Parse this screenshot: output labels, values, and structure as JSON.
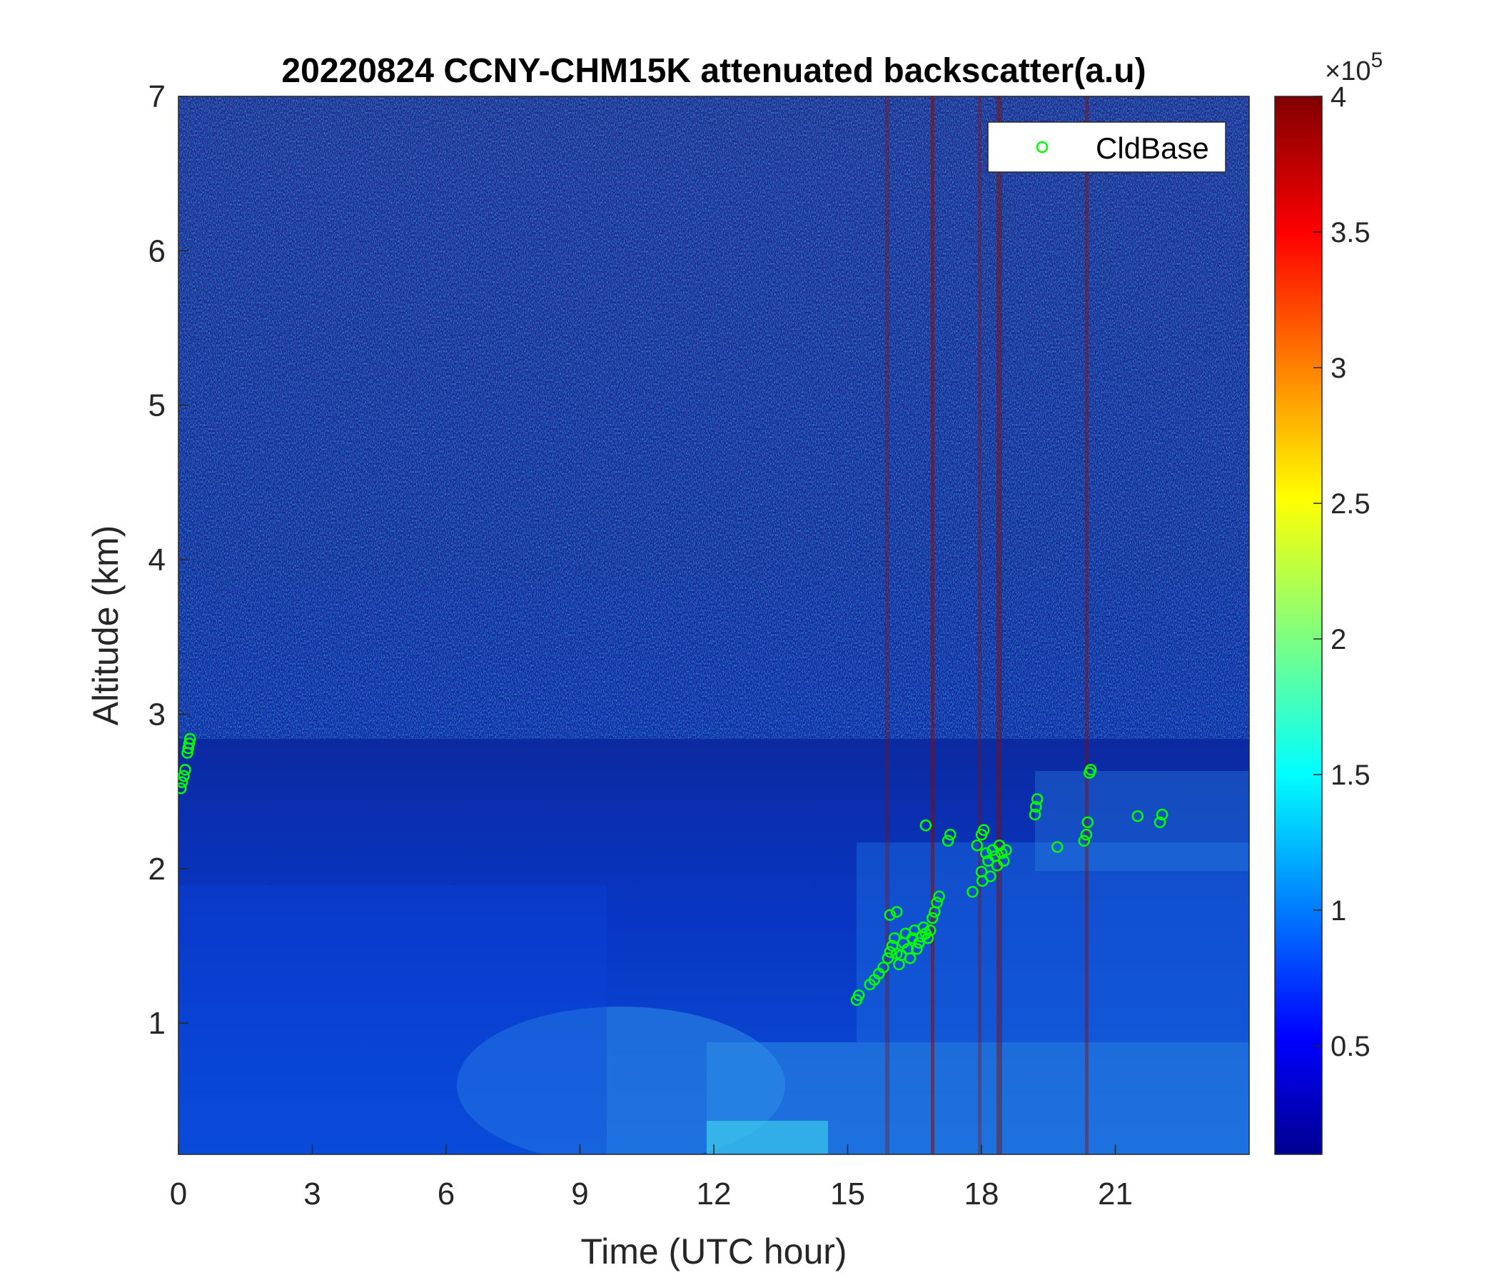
{
  "chart_data": {
    "type": "heatmap",
    "title": "20220824 CCNY-CHM15K attenuated backscatter(a.u)",
    "xlabel": "Time (UTC hour)",
    "ylabel": "Altitude (km)",
    "xlim": [
      0,
      24
    ],
    "ylim": [
      0.15,
      7
    ],
    "xticks": [
      "0",
      "3",
      "6",
      "9",
      "12",
      "15",
      "18",
      "21"
    ],
    "yticks": [
      "1",
      "2",
      "3",
      "4",
      "5",
      "6",
      "7"
    ],
    "colorbar": {
      "colormap": "jet",
      "clim": [
        0.1,
        4
      ],
      "ticks": [
        "0.5",
        "1",
        "1.5",
        "2",
        "2.5",
        "3",
        "3.5",
        "4"
      ],
      "multiplier_base": "×10",
      "multiplier_exp": "5"
    },
    "legend": {
      "position": "top-right",
      "entries": [
        {
          "label": "CldBase",
          "marker": "circle",
          "color": "#00ff00"
        }
      ]
    },
    "series": [
      {
        "name": "CldBase",
        "points": [
          [
            0.05,
            2.52
          ],
          [
            0.08,
            2.56
          ],
          [
            0.12,
            2.6
          ],
          [
            0.15,
            2.64
          ],
          [
            0.2,
            2.75
          ],
          [
            0.22,
            2.78
          ],
          [
            0.24,
            2.81
          ],
          [
            0.26,
            2.84
          ],
          [
            15.2,
            1.15
          ],
          [
            15.25,
            1.18
          ],
          [
            15.5,
            1.25
          ],
          [
            15.6,
            1.28
          ],
          [
            15.7,
            1.32
          ],
          [
            15.8,
            1.36
          ],
          [
            15.9,
            1.42
          ],
          [
            15.95,
            1.46
          ],
          [
            16.0,
            1.5
          ],
          [
            16.05,
            1.55
          ],
          [
            16.1,
            1.45
          ],
          [
            16.15,
            1.38
          ],
          [
            16.2,
            1.44
          ],
          [
            16.25,
            1.52
          ],
          [
            16.3,
            1.58
          ],
          [
            16.35,
            1.48
          ],
          [
            16.4,
            1.42
          ],
          [
            16.45,
            1.55
          ],
          [
            16.5,
            1.6
          ],
          [
            16.55,
            1.48
          ],
          [
            16.6,
            1.52
          ],
          [
            16.65,
            1.56
          ],
          [
            16.7,
            1.62
          ],
          [
            16.75,
            1.58
          ],
          [
            16.8,
            1.55
          ],
          [
            16.85,
            1.6
          ],
          [
            16.9,
            1.68
          ],
          [
            16.95,
            1.72
          ],
          [
            17.0,
            1.78
          ],
          [
            17.05,
            1.82
          ],
          [
            15.95,
            1.7
          ],
          [
            16.1,
            1.72
          ],
          [
            16.75,
            2.28
          ],
          [
            17.25,
            2.18
          ],
          [
            17.3,
            2.22
          ],
          [
            17.8,
            1.85
          ],
          [
            17.9,
            2.15
          ],
          [
            18.0,
            2.22
          ],
          [
            18.05,
            2.25
          ],
          [
            18.1,
            2.1
          ],
          [
            18.15,
            2.05
          ],
          [
            18.2,
            1.95
          ],
          [
            18.25,
            2.12
          ],
          [
            18.3,
            2.08
          ],
          [
            18.35,
            2.02
          ],
          [
            18.4,
            2.15
          ],
          [
            18.45,
            2.1
          ],
          [
            18.5,
            2.05
          ],
          [
            18.55,
            2.12
          ],
          [
            18.0,
            1.98
          ],
          [
            18.02,
            1.92
          ],
          [
            19.2,
            2.35
          ],
          [
            19.22,
            2.4
          ],
          [
            19.25,
            2.45
          ],
          [
            19.7,
            2.14
          ],
          [
            20.3,
            2.18
          ],
          [
            20.35,
            2.22
          ],
          [
            20.38,
            2.3
          ],
          [
            20.45,
            2.64
          ],
          [
            20.42,
            2.62
          ],
          [
            21.5,
            2.34
          ],
          [
            22.0,
            2.3
          ],
          [
            22.05,
            2.35
          ]
        ]
      }
    ],
    "grid": false
  }
}
